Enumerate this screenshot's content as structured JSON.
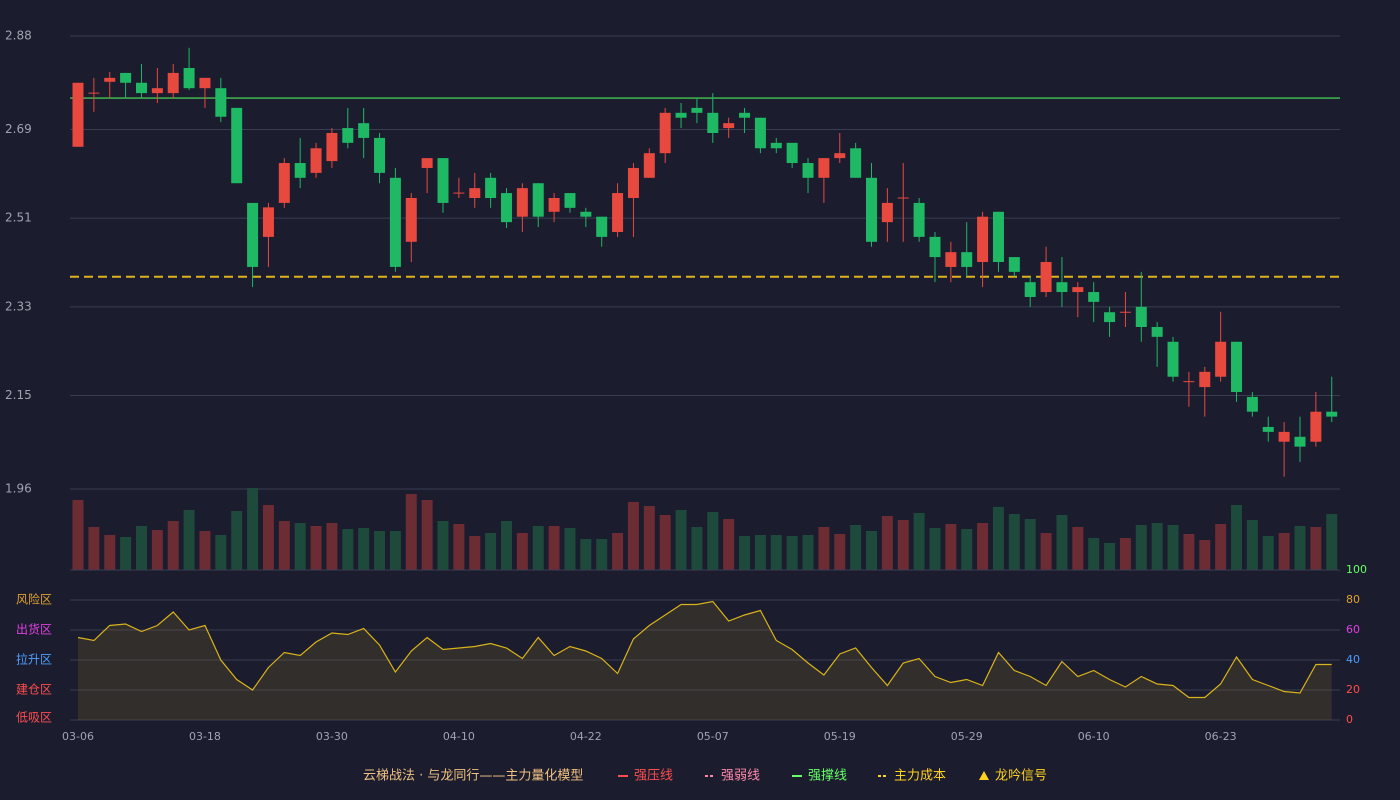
{
  "chart_data": {
    "type": "candlestick",
    "title": "云梯战法 · 与龙同行——主力量化模型",
    "categories": [
      "03-06",
      null,
      null,
      null,
      null,
      null,
      null,
      null,
      "03-18",
      null,
      null,
      null,
      null,
      null,
      null,
      null,
      "03-30",
      null,
      null,
      null,
      null,
      null,
      null,
      null,
      "04-10",
      null,
      null,
      null,
      null,
      null,
      null,
      null,
      "04-22",
      null,
      null,
      null,
      null,
      null,
      null,
      null,
      "05-07",
      null,
      null,
      null,
      null,
      null,
      null,
      null,
      "05-19",
      null,
      null,
      null,
      null,
      null,
      null,
      null,
      "05-29",
      null,
      null,
      null,
      null,
      null,
      null,
      null,
      "06-10",
      null,
      null,
      null,
      null,
      null,
      null,
      null,
      "06-23",
      null,
      null,
      null,
      null,
      null,
      null,
      null
    ],
    "open": [
      2.655,
      2.763,
      2.787,
      2.805,
      2.785,
      2.764,
      2.764,
      2.815,
      2.774,
      2.774,
      2.734,
      2.541,
      2.472,
      2.541,
      2.622,
      2.602,
      2.626,
      2.693,
      2.703,
      2.673,
      2.592,
      2.462,
      2.612,
      2.632,
      2.56,
      2.551,
      2.592,
      2.561,
      2.513,
      2.581,
      2.523,
      2.561,
      2.523,
      2.513,
      2.482,
      2.551,
      2.592,
      2.642,
      2.724,
      2.734,
      2.724,
      2.693,
      2.724,
      2.714,
      2.663,
      2.663,
      2.622,
      2.592,
      2.632,
      2.652,
      2.592,
      2.502,
      2.55,
      2.541,
      2.472,
      2.411,
      2.441,
      2.421,
      2.523,
      2.431,
      2.38,
      2.36,
      2.38,
      2.36,
      2.36,
      2.319,
      2.318,
      2.33,
      2.289,
      2.259,
      2.177,
      2.167,
      2.188,
      2.259,
      2.147,
      2.086,
      2.056,
      2.066,
      2.056,
      2.117
    ],
    "high": [
      2.785,
      2.795,
      2.807,
      2.805,
      2.823,
      2.815,
      2.823,
      2.856,
      2.795,
      2.795,
      2.734,
      2.541,
      2.541,
      2.632,
      2.673,
      2.663,
      2.693,
      2.734,
      2.734,
      2.683,
      2.612,
      2.561,
      2.632,
      2.632,
      2.592,
      2.602,
      2.602,
      2.571,
      2.581,
      2.581,
      2.561,
      2.561,
      2.531,
      2.513,
      2.581,
      2.622,
      2.652,
      2.734,
      2.744,
      2.754,
      2.764,
      2.714,
      2.734,
      2.714,
      2.673,
      2.663,
      2.632,
      2.632,
      2.683,
      2.663,
      2.622,
      2.571,
      2.622,
      2.551,
      2.482,
      2.462,
      2.502,
      2.523,
      2.523,
      2.431,
      2.391,
      2.452,
      2.431,
      2.38,
      2.38,
      2.33,
      2.36,
      2.401,
      2.299,
      2.269,
      2.198,
      2.208,
      2.32,
      2.259,
      2.157,
      2.107,
      2.096,
      2.107,
      2.157,
      2.188
    ],
    "low": [
      2.655,
      2.726,
      2.754,
      2.754,
      2.754,
      2.744,
      2.754,
      2.77,
      2.734,
      2.705,
      2.581,
      2.37,
      2.411,
      2.531,
      2.571,
      2.592,
      2.612,
      2.652,
      2.632,
      2.581,
      2.401,
      2.421,
      2.561,
      2.521,
      2.551,
      2.531,
      2.531,
      2.49,
      2.482,
      2.492,
      2.502,
      2.521,
      2.492,
      2.452,
      2.472,
      2.472,
      2.592,
      2.622,
      2.693,
      2.703,
      2.663,
      2.673,
      2.683,
      2.642,
      2.642,
      2.612,
      2.561,
      2.541,
      2.622,
      2.592,
      2.452,
      2.462,
      2.462,
      2.462,
      2.38,
      2.38,
      2.391,
      2.37,
      2.401,
      2.391,
      2.33,
      2.35,
      2.33,
      2.309,
      2.299,
      2.269,
      2.289,
      2.259,
      2.208,
      2.178,
      2.127,
      2.107,
      2.178,
      2.137,
      2.107,
      2.056,
      1.985,
      2.015,
      2.046,
      2.096
    ],
    "close": [
      2.785,
      2.765,
      2.795,
      2.785,
      2.764,
      2.774,
      2.805,
      2.774,
      2.795,
      2.716,
      2.581,
      2.411,
      2.532,
      2.622,
      2.592,
      2.652,
      2.683,
      2.663,
      2.673,
      2.602,
      2.411,
      2.551,
      2.632,
      2.541,
      2.562,
      2.571,
      2.551,
      2.502,
      2.571,
      2.513,
      2.551,
      2.531,
      2.513,
      2.472,
      2.561,
      2.612,
      2.642,
      2.724,
      2.714,
      2.724,
      2.683,
      2.703,
      2.714,
      2.652,
      2.652,
      2.622,
      2.592,
      2.632,
      2.642,
      2.592,
      2.462,
      2.541,
      2.552,
      2.472,
      2.431,
      2.441,
      2.411,
      2.513,
      2.421,
      2.401,
      2.35,
      2.421,
      2.36,
      2.37,
      2.34,
      2.299,
      2.32,
      2.289,
      2.269,
      2.188,
      2.179,
      2.198,
      2.259,
      2.157,
      2.117,
      2.076,
      2.076,
      2.046,
      2.117,
      2.107
    ],
    "up_color": "#e8493f",
    "down_color": "#1fb865",
    "ylim": [
      1.96,
      2.88
    ],
    "yticks": [
      2.88,
      2.69,
      2.51,
      2.33,
      2.15,
      1.96
    ],
    "grid": true,
    "legend": [
      {
        "name": "强压线",
        "color": "#ff4d4d",
        "marker": "line"
      },
      {
        "name": "强弱线",
        "color": "#ff88aa",
        "marker": "dash"
      },
      {
        "name": "强撑线",
        "color": "#66ff66",
        "marker": "line",
        "value": 2.754
      },
      {
        "name": "主力成本",
        "color": "#ffd21f",
        "marker": "dash",
        "value": 2.391
      },
      {
        "name": "龙吟信号",
        "color": "#ffd21f",
        "marker": "triangle"
      }
    ],
    "volume": {
      "values": [
        70,
        43,
        35,
        33,
        44,
        40,
        49,
        60,
        39,
        35,
        59,
        82,
        65,
        49,
        47,
        44,
        47,
        41,
        42,
        39,
        39,
        76,
        70,
        49,
        46,
        34,
        37,
        49,
        37,
        44,
        44,
        42,
        31,
        31,
        37,
        68,
        64,
        55,
        60,
        43,
        58,
        51,
        34,
        35,
        35,
        34,
        35,
        43,
        36,
        45,
        39,
        54,
        50,
        57,
        42,
        46,
        41,
        47,
        63,
        56,
        51,
        37,
        55,
        43,
        32,
        27,
        32,
        45,
        47,
        45,
        36,
        30,
        46,
        65,
        50,
        34,
        37,
        44,
        43,
        56
      ],
      "up_color": "#6b2c33",
      "down_color": "#1d4a3b"
    },
    "indicator": {
      "type": "line",
      "values": [
        55,
        53,
        63,
        64,
        59,
        63,
        72,
        60,
        63,
        40,
        27,
        20,
        35,
        45,
        43,
        52,
        58,
        57,
        61,
        50,
        32,
        46,
        55,
        47,
        48,
        49,
        51,
        48,
        41,
        55,
        43,
        49,
        46,
        41,
        31,
        54,
        63,
        70,
        77,
        77,
        79,
        66,
        70,
        73,
        53,
        47,
        38,
        30,
        44,
        48,
        35,
        23,
        38,
        41,
        29,
        25,
        27,
        23,
        45,
        33,
        29,
        23,
        39,
        29,
        33,
        27,
        22,
        29,
        24,
        23,
        15,
        15,
        24,
        42,
        27,
        23,
        19,
        18,
        37,
        37
      ],
      "color": "#d9b31a",
      "ylim": [
        0,
        100
      ],
      "yticks": [
        0,
        20,
        40,
        60,
        80,
        100
      ],
      "ytick_colors": [
        "#ff4d4d",
        "#ff4d4d",
        "#4d9fff",
        "#e040e0",
        "#e0a030",
        "#66ff66"
      ],
      "zones": [
        {
          "label": "风险区",
          "value": 80,
          "color": "#e0a030"
        },
        {
          "label": "出货区",
          "value": 60,
          "color": "#e040e0"
        },
        {
          "label": "拉升区",
          "value": 40,
          "color": "#4d9fff"
        },
        {
          "label": "建仓区",
          "value": 20,
          "color": "#ff4d4d"
        },
        {
          "label": "低吸区",
          "value": 0,
          "color": "#ff4d4d"
        }
      ]
    }
  }
}
